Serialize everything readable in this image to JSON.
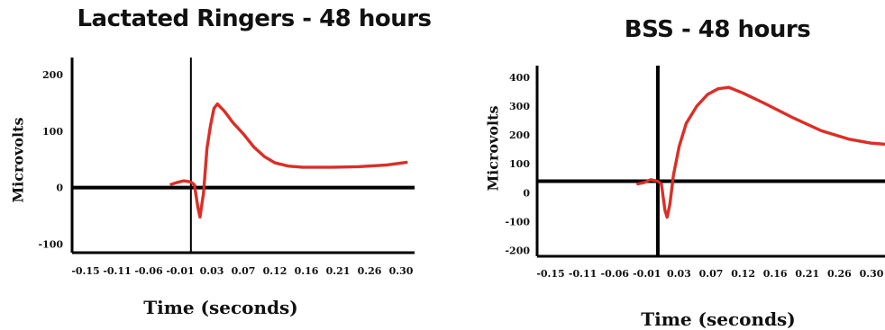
{
  "chart_data": [
    {
      "type": "line",
      "title": "Lactated Ringers - 48 hours",
      "xlabel": "Time (seconds)",
      "ylabel": "Microvolts",
      "xlim": [
        -0.17,
        0.32
      ],
      "ylim": [
        -115,
        230
      ],
      "x_ticks": [
        "-0.15",
        "-0.11",
        "-0.06",
        "-0.01",
        "0.03",
        "0.07",
        "0.12",
        "0.16",
        "0.21",
        "0.26",
        "0.30"
      ],
      "y_ticks": [
        -100,
        0,
        100,
        200
      ],
      "baseline_y": 0,
      "stimulus_x": 0.0,
      "trace_color": "#e8291f",
      "series": [
        {
          "x": [
            -0.03,
            -0.02,
            -0.01,
            0.0,
            0.005,
            0.01,
            0.013,
            0.018,
            0.023,
            0.028,
            0.033,
            0.038,
            0.048,
            0.06,
            0.075,
            0.09,
            0.105,
            0.12,
            0.14,
            0.16,
            0.2,
            0.24,
            0.28,
            0.31
          ],
          "y": [
            5,
            9,
            12,
            10,
            5,
            -35,
            -52,
            -10,
            70,
            110,
            140,
            148,
            135,
            115,
            95,
            72,
            55,
            44,
            38,
            36,
            36,
            37,
            40,
            45
          ]
        }
      ]
    },
    {
      "type": "line",
      "title": "BSS - 48 hours",
      "xlabel": "Time (seconds)",
      "ylabel": "Microvolts",
      "xlim": [
        -0.17,
        0.32
      ],
      "ylim": [
        -220,
        440
      ],
      "x_ticks": [
        "-0.15",
        "-0.11",
        "-0.06",
        "-0.01",
        "0.03",
        "0.07",
        "0.12",
        "0.16",
        "0.21",
        "0.26",
        "0.30"
      ],
      "y_ticks": [
        -200,
        -100,
        0,
        100,
        200,
        300,
        400
      ],
      "baseline_y": 40,
      "stimulus_x": 0.0,
      "trace_color": "#e8291f",
      "series": [
        {
          "x": [
            -0.03,
            -0.02,
            -0.01,
            0.0,
            0.005,
            0.01,
            0.013,
            0.017,
            0.022,
            0.03,
            0.04,
            0.055,
            0.07,
            0.085,
            0.1,
            0.12,
            0.15,
            0.19,
            0.23,
            0.27,
            0.3,
            0.32
          ],
          "y": [
            30,
            35,
            45,
            40,
            30,
            -60,
            -85,
            -40,
            60,
            160,
            240,
            300,
            340,
            360,
            365,
            345,
            310,
            260,
            215,
            185,
            172,
            168
          ]
        }
      ]
    }
  ]
}
